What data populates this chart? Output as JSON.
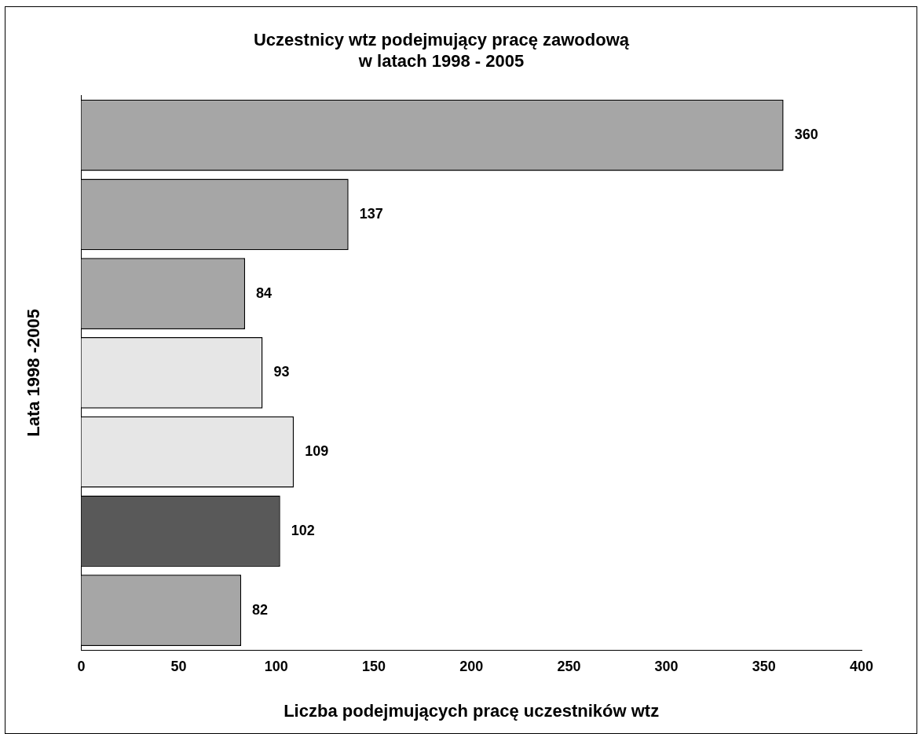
{
  "chart_data": {
    "type": "bar",
    "orientation": "horizontal",
    "title": "Uczestnicy wtz podejmujący pracę zawodową\nw latach 1998 - 2005",
    "xlabel": "Liczba podejmujących pracę uczestników wtz",
    "ylabel": "Lata 1998 -2005",
    "categories": [
      null,
      null,
      null,
      null,
      null,
      null,
      null
    ],
    "values": [
      360,
      137,
      84,
      93,
      109,
      102,
      82
    ],
    "colors": [
      "#a6a6a6",
      "#a6a6a6",
      "#a6a6a6",
      "#e6e6e6",
      "#e6e6e6",
      "#595959",
      "#a6a6a6"
    ],
    "xlim": [
      0,
      400
    ],
    "xticks": [
      0,
      50,
      100,
      150,
      200,
      250,
      300,
      350,
      400
    ],
    "data_labels": true,
    "grid": false,
    "legend": false
  }
}
